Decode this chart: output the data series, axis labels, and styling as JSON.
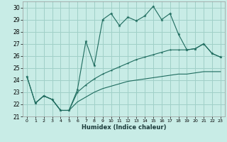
{
  "xlabel": "Humidex (Indice chaleur)",
  "bg_color": "#c8ece6",
  "grid_color": "#a0d0c8",
  "line_color": "#1e6b5e",
  "xlim": [
    -0.5,
    23.5
  ],
  "ylim": [
    21.0,
    30.5
  ],
  "yticks": [
    21,
    22,
    23,
    24,
    25,
    26,
    27,
    28,
    29,
    30
  ],
  "xticks": [
    0,
    1,
    2,
    3,
    4,
    5,
    6,
    7,
    8,
    9,
    10,
    11,
    12,
    13,
    14,
    15,
    16,
    17,
    18,
    19,
    20,
    21,
    22,
    23
  ],
  "series1": [
    [
      0,
      24.3
    ],
    [
      1,
      22.1
    ],
    [
      2,
      22.7
    ],
    [
      3,
      22.4
    ],
    [
      4,
      21.5
    ],
    [
      5,
      21.5
    ],
    [
      6,
      23.2
    ],
    [
      7,
      27.2
    ],
    [
      8,
      25.2
    ],
    [
      9,
      29.0
    ],
    [
      10,
      29.5
    ],
    [
      11,
      28.5
    ],
    [
      12,
      29.2
    ],
    [
      13,
      28.9
    ],
    [
      14,
      29.3
    ],
    [
      15,
      30.1
    ],
    [
      16,
      29.0
    ],
    [
      17,
      29.5
    ],
    [
      18,
      27.8
    ],
    [
      19,
      26.5
    ],
    [
      20,
      26.6
    ],
    [
      21,
      27.0
    ],
    [
      22,
      26.2
    ],
    [
      23,
      25.9
    ]
  ],
  "series2": [
    [
      1,
      22.1
    ],
    [
      2,
      22.7
    ],
    [
      3,
      22.4
    ],
    [
      4,
      21.5
    ],
    [
      5,
      21.5
    ],
    [
      6,
      23.0
    ],
    [
      7,
      23.6
    ],
    [
      8,
      24.1
    ],
    [
      9,
      24.5
    ],
    [
      10,
      24.8
    ],
    [
      11,
      25.1
    ],
    [
      12,
      25.4
    ],
    [
      13,
      25.7
    ],
    [
      14,
      25.9
    ],
    [
      15,
      26.1
    ],
    [
      16,
      26.3
    ],
    [
      17,
      26.5
    ],
    [
      18,
      26.5
    ],
    [
      19,
      26.5
    ],
    [
      20,
      26.6
    ],
    [
      21,
      27.0
    ],
    [
      22,
      26.2
    ],
    [
      23,
      25.9
    ]
  ],
  "series3": [
    [
      0,
      24.3
    ],
    [
      1,
      22.1
    ],
    [
      2,
      22.7
    ],
    [
      3,
      22.4
    ],
    [
      4,
      21.5
    ],
    [
      5,
      21.5
    ],
    [
      6,
      22.2
    ],
    [
      7,
      22.6
    ],
    [
      8,
      23.0
    ],
    [
      9,
      23.3
    ],
    [
      10,
      23.5
    ],
    [
      11,
      23.7
    ],
    [
      12,
      23.9
    ],
    [
      13,
      24.0
    ],
    [
      14,
      24.1
    ],
    [
      15,
      24.2
    ],
    [
      16,
      24.3
    ],
    [
      17,
      24.4
    ],
    [
      18,
      24.5
    ],
    [
      19,
      24.5
    ],
    [
      20,
      24.6
    ],
    [
      21,
      24.7
    ],
    [
      22,
      24.7
    ],
    [
      23,
      24.7
    ]
  ]
}
